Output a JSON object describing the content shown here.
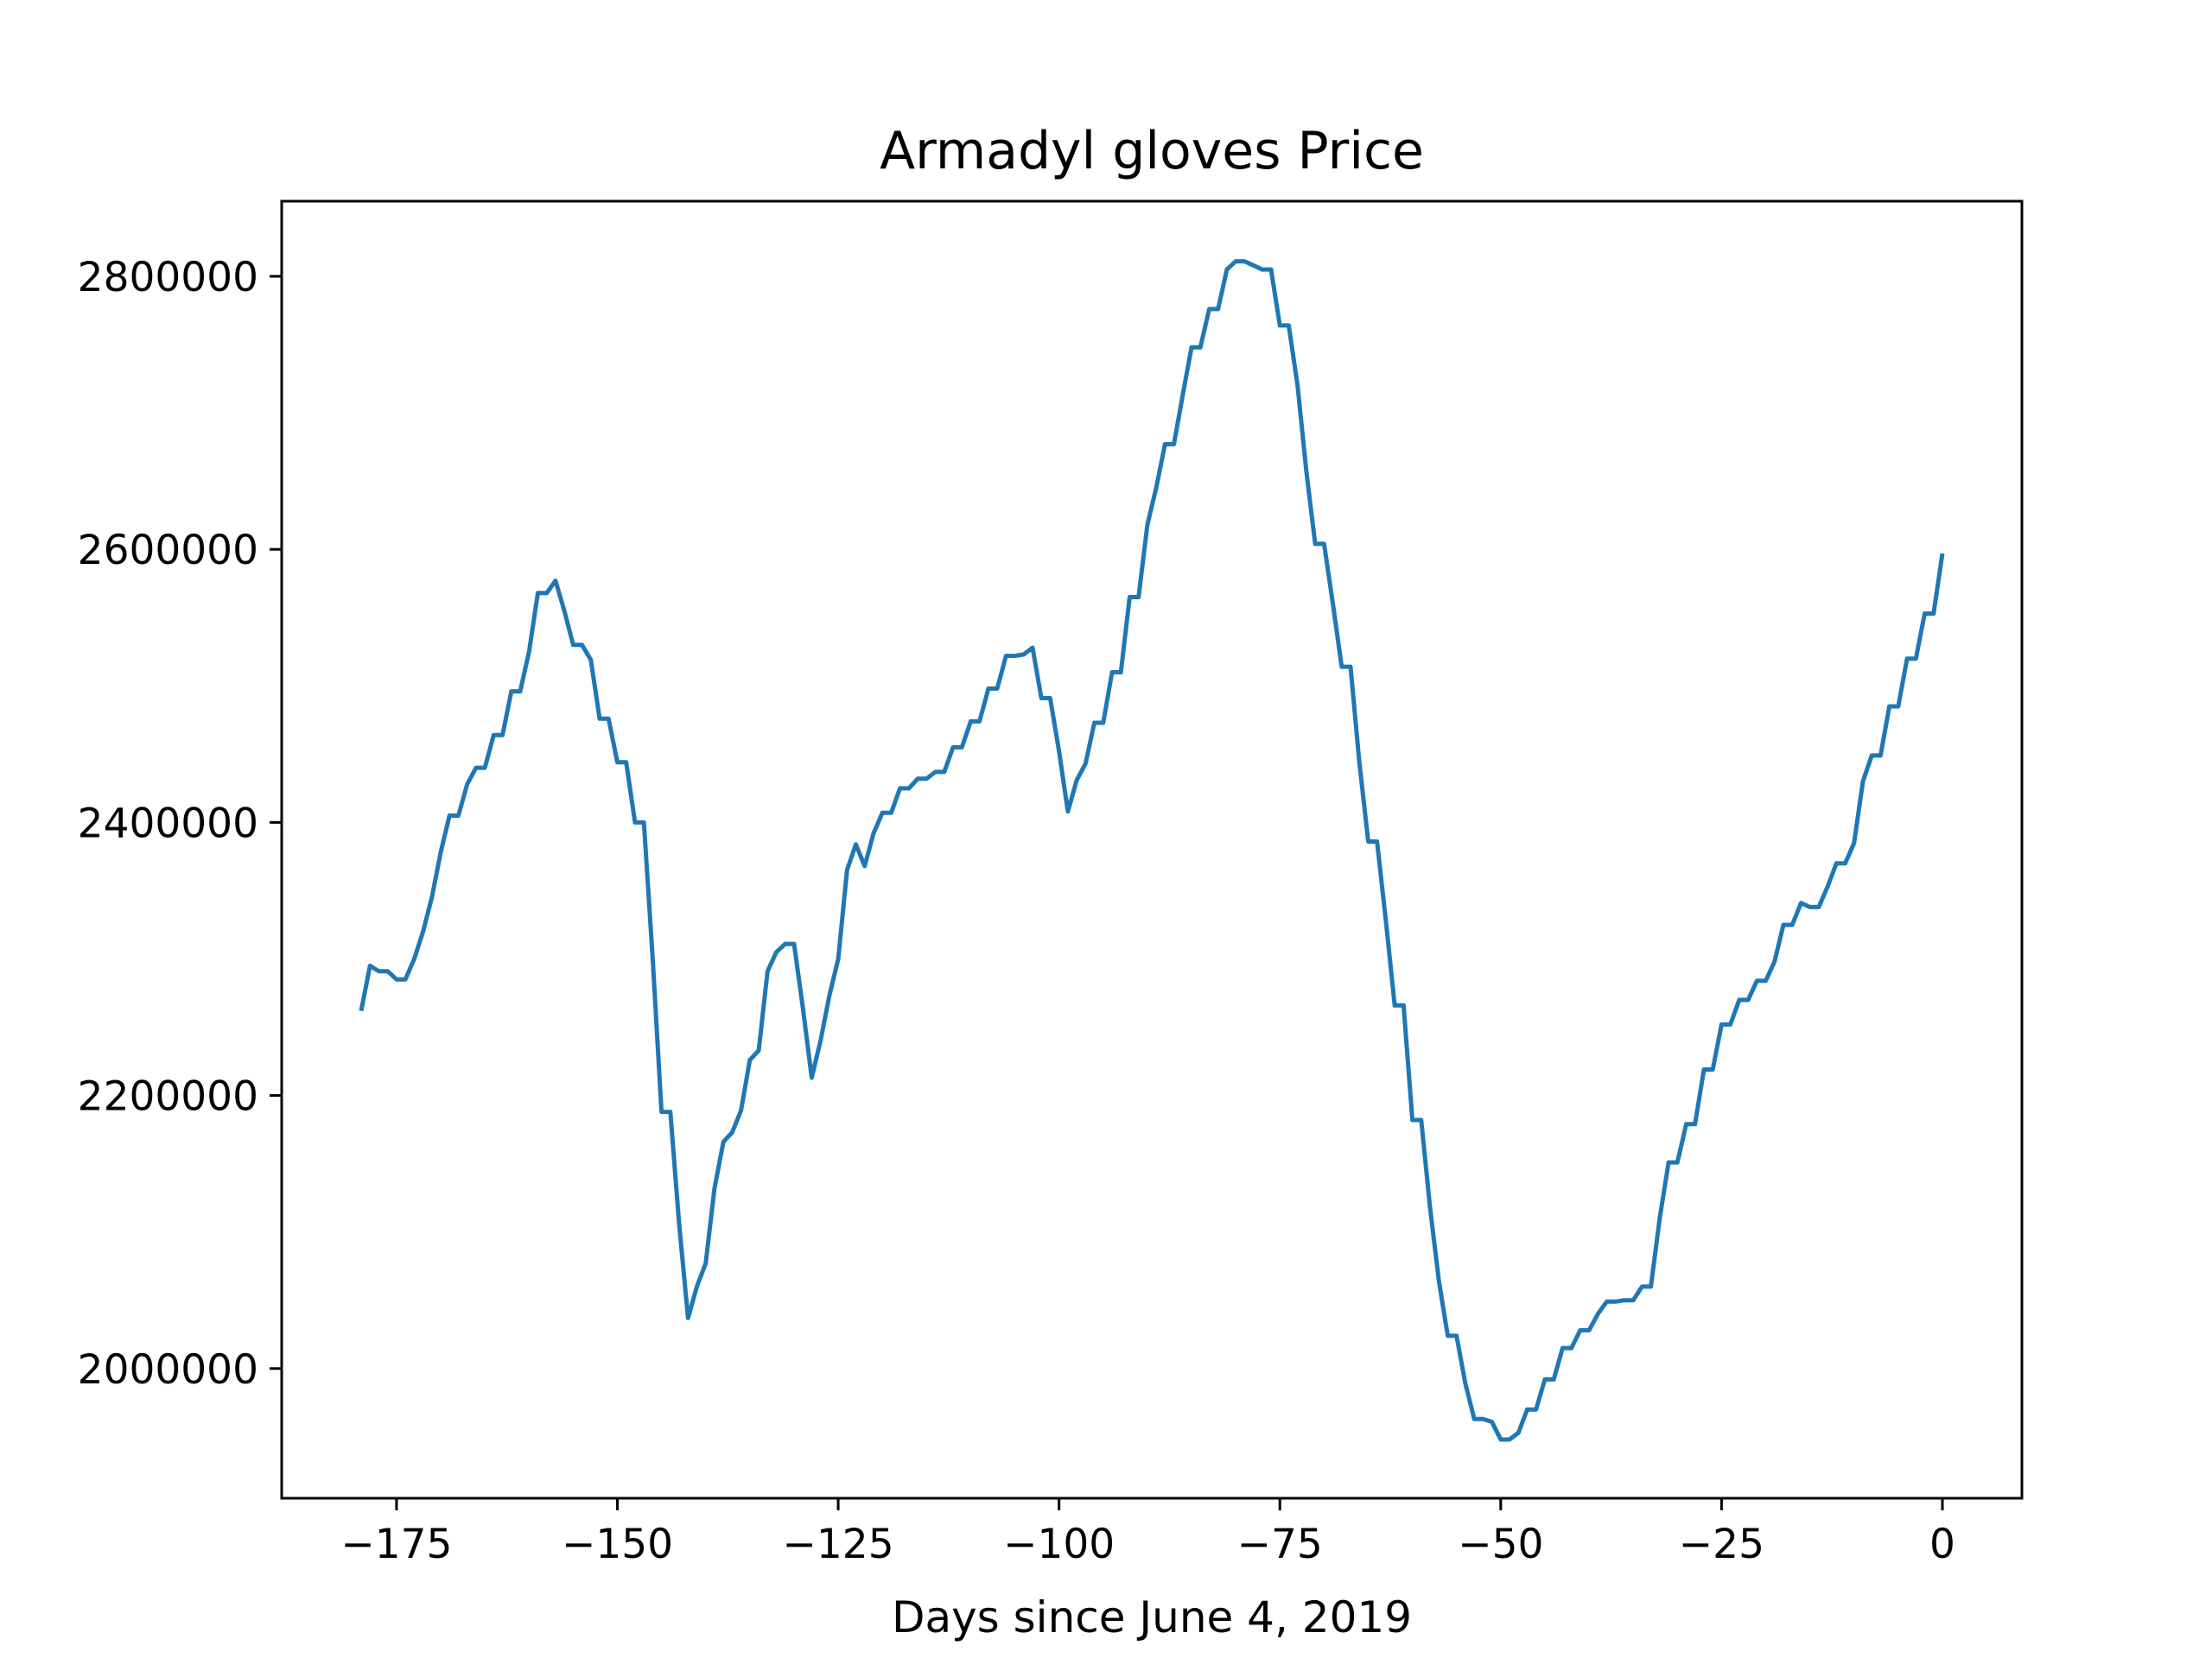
{
  "chart_data": {
    "type": "line",
    "title": "Armadyl gloves Price",
    "xlabel": "Days since June 4, 2019",
    "ylabel": "",
    "xlim": [
      -188,
      9
    ],
    "ylim": [
      1905000,
      2855000
    ],
    "xticks": [
      -175,
      -150,
      -125,
      -100,
      -75,
      -50,
      -25,
      0
    ],
    "xtick_labels": [
      "−175",
      "−150",
      "−125",
      "−100",
      "−75",
      "−50",
      "−25",
      "0"
    ],
    "yticks": [
      2000000,
      2200000,
      2400000,
      2600000,
      2800000
    ],
    "ytick_labels": [
      "2000000",
      "2200000",
      "2400000",
      "2600000",
      "2800000"
    ],
    "grid": false,
    "series": [
      {
        "color": "#1f77b4",
        "x": [
          -179,
          -178,
          -177,
          -176,
          -175,
          -174,
          -173,
          -172,
          -171,
          -170,
          -169,
          -168,
          -167,
          -166,
          -165,
          -164,
          -163,
          -162,
          -161,
          -160,
          -159,
          -158,
          -157,
          -156,
          -155,
          -154,
          -153,
          -152,
          -151,
          -150,
          -149,
          -148,
          -147,
          -146,
          -145,
          -144,
          -143,
          -142,
          -141,
          -140,
          -139,
          -138,
          -137,
          -136,
          -135,
          -134,
          -133,
          -132,
          -131,
          -130,
          -129,
          -128,
          -127,
          -126,
          -125,
          -124,
          -123,
          -122,
          -121,
          -120,
          -119,
          -118,
          -117,
          -116,
          -115,
          -114,
          -113,
          -112,
          -111,
          -110,
          -109,
          -108,
          -107,
          -106,
          -105,
          -104,
          -103,
          -102,
          -101,
          -100,
          -99,
          -98,
          -97,
          -96,
          -95,
          -94,
          -93,
          -92,
          -91,
          -90,
          -89,
          -88,
          -87,
          -86,
          -85,
          -84,
          -83,
          -82,
          -81,
          -80,
          -79,
          -78,
          -77,
          -76,
          -75,
          -74,
          -73,
          -72,
          -71,
          -70,
          -69,
          -68,
          -67,
          -66,
          -65,
          -64,
          -63,
          -62,
          -61,
          -60,
          -59,
          -58,
          -57,
          -56,
          -55,
          -54,
          -53,
          -52,
          -51,
          -50,
          -49,
          -48,
          -47,
          -46,
          -45,
          -44,
          -43,
          -42,
          -41,
          -40,
          -39,
          -38,
          -37,
          -36,
          -35,
          -34,
          -33,
          -32,
          -31,
          -30,
          -29,
          -28,
          -27,
          -26,
          -25,
          -24,
          -23,
          -22,
          -21,
          -20,
          -19,
          -18,
          -17,
          -16,
          -15,
          -14,
          -13,
          -12,
          -11,
          -10,
          -9,
          -8,
          -7,
          -6,
          -5,
          -4,
          -3,
          -2,
          -1,
          0
        ],
        "y": [
          2262000,
          2295000,
          2291000,
          2291000,
          2285000,
          2285000,
          2300000,
          2320000,
          2345000,
          2378000,
          2405000,
          2405000,
          2428000,
          2440000,
          2440000,
          2464000,
          2464000,
          2496000,
          2496000,
          2525000,
          2568000,
          2568000,
          2577000,
          2555000,
          2530000,
          2530000,
          2519000,
          2476000,
          2476000,
          2444000,
          2444000,
          2400000,
          2400000,
          2300000,
          2188000,
          2188000,
          2105000,
          2037000,
          2060000,
          2077000,
          2132000,
          2166000,
          2173000,
          2189000,
          2226000,
          2233000,
          2291000,
          2305000,
          2311000,
          2311000,
          2264000,
          2213000,
          2240000,
          2273000,
          2300000,
          2365000,
          2384000,
          2368000,
          2392000,
          2407000,
          2407000,
          2425000,
          2425000,
          2432000,
          2432000,
          2437000,
          2437000,
          2455000,
          2455000,
          2474000,
          2474000,
          2498000,
          2498000,
          2522000,
          2522000,
          2523000,
          2528000,
          2491000,
          2491000,
          2452000,
          2408000,
          2431000,
          2443000,
          2473000,
          2473000,
          2510000,
          2510000,
          2565000,
          2565000,
          2618000,
          2645000,
          2677000,
          2677000,
          2713000,
          2748000,
          2748000,
          2776000,
          2776000,
          2805000,
          2811000,
          2811000,
          2808000,
          2805000,
          2805000,
          2764000,
          2764000,
          2720000,
          2657000,
          2604000,
          2604000,
          2560000,
          2514000,
          2514000,
          2444000,
          2386000,
          2386000,
          2328000,
          2266000,
          2266000,
          2182000,
          2182000,
          2118000,
          2064000,
          2024000,
          2024000,
          1989000,
          1963000,
          1963000,
          1961000,
          1948000,
          1948000,
          1953000,
          1970000,
          1970000,
          1992000,
          1992000,
          2015000,
          2015000,
          2028000,
          2028000,
          2040000,
          2049000,
          2049000,
          2050000,
          2050000,
          2060000,
          2060000,
          2110000,
          2151000,
          2151000,
          2179000,
          2179000,
          2219000,
          2219000,
          2252000,
          2252000,
          2270000,
          2270000,
          2284000,
          2284000,
          2298000,
          2325000,
          2325000,
          2341000,
          2338000,
          2338000,
          2353000,
          2370000,
          2370000,
          2385000,
          2430000,
          2449000,
          2449000,
          2485000,
          2485000,
          2520000,
          2520000,
          2553000,
          2553000,
          2597000
        ]
      }
    ]
  }
}
